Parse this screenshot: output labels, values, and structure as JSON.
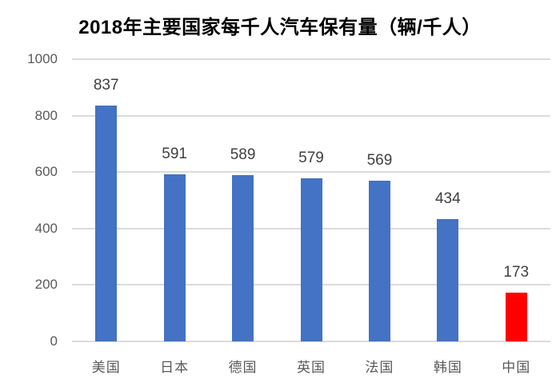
{
  "chart_data": {
    "type": "bar",
    "title": "2018年主要国家每千人汽车保有量（辆/千人）",
    "categories": [
      "美国",
      "日本",
      "德国",
      "英国",
      "法国",
      "韩国",
      "中国"
    ],
    "values": [
      837,
      591,
      589,
      579,
      569,
      434,
      173
    ],
    "bar_colors": [
      "#4472C4",
      "#4472C4",
      "#4472C4",
      "#4472C4",
      "#4472C4",
      "#4472C4",
      "#FF0000"
    ],
    "data_labels": [
      "837",
      "591",
      "589",
      "579",
      "569",
      "434",
      "173"
    ],
    "xlabel": "",
    "ylabel": "",
    "ylim": [
      0,
      1000
    ],
    "yticks": [
      0,
      200,
      400,
      600,
      800,
      1000
    ],
    "grid": true,
    "legend": false,
    "colors": {
      "bar_default": "#4472C4",
      "bar_highlight": "#FF0000",
      "gridline": "#DBDBDB",
      "axis_label": "#595959",
      "data_label": "#404040",
      "title": "#000000",
      "background": "#FFFFFF"
    }
  }
}
